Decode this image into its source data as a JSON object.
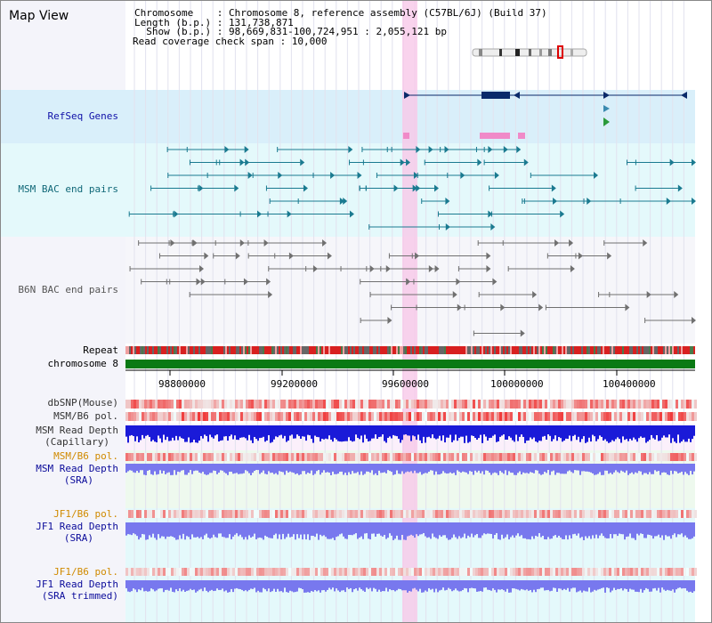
{
  "view_title": "Map View",
  "info_lines": [
    "Chromosome    : Chromosome 8, reference assembly (C57BL/6J) (Build 37)",
    "Length (b.p.) : 131,738,871",
    "  Show (b.p.) : 98,669,831-100,724,951 : 2,055,121 bp",
    "Read coverage check span : 10,000"
  ],
  "tracks": {
    "refseq": "RefSeq Genes",
    "msm_bac": "MSM BAC end pairs",
    "b6n_bac": "B6N BAC end pairs",
    "repeat": "Repeat",
    "chromosome": "chromosome 8",
    "dbsnp": "dbSNP(Mouse)",
    "msm_pol": "MSM/B6 pol.",
    "msm_depth_cap_1": "MSM Read Depth",
    "msm_depth_cap_2": "(Capillary)",
    "msm_pol_sra": "MSM/B6 pol.",
    "msm_depth_sra_1": "MSM Read Depth",
    "msm_depth_sra_2": "(SRA)",
    "jf1_pol_1": "JF1/B6 pol.",
    "jf1_depth_sra_1": "JF1 Read Depth",
    "jf1_depth_sra_2": "(SRA)",
    "jf1_pol_2": "JF1/B6 pol.",
    "jf1_depth_trim_1": "JF1 Read Depth",
    "jf1_depth_trim_2": "(SRA trimmed)"
  },
  "axis_ticks": [
    "98800000",
    "99200000",
    "99600000",
    "100000000",
    "100400000"
  ],
  "colors": {
    "refseq_bg": "#d9effa",
    "msm_bg": "#e4f9fb",
    "b6n_bg": "#f6f6fa",
    "chromosome": "#0a7a14",
    "highlight": "#f8c8e8",
    "msm_depth": "#1a1ad8",
    "sra_depth": "#7878ee",
    "pol_red": "#ee3030",
    "bac_teal": "#1a7a90",
    "bac_gray": "#707070",
    "gene_navy": "#0a2a6a"
  }
}
